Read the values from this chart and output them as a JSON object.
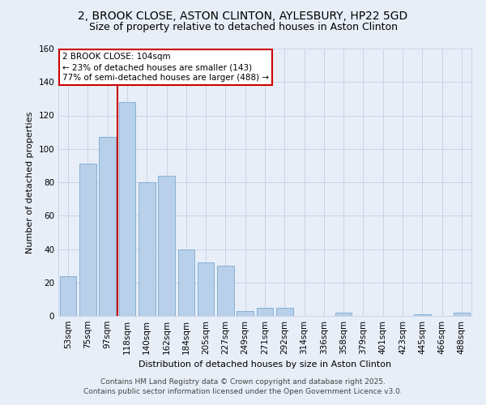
{
  "title": "2, BROOK CLOSE, ASTON CLINTON, AYLESBURY, HP22 5GD",
  "subtitle": "Size of property relative to detached houses in Aston Clinton",
  "xlabel": "Distribution of detached houses by size in Aston Clinton",
  "ylabel": "Number of detached properties",
  "categories": [
    "53sqm",
    "75sqm",
    "97sqm",
    "118sqm",
    "140sqm",
    "162sqm",
    "184sqm",
    "205sqm",
    "227sqm",
    "249sqm",
    "271sqm",
    "292sqm",
    "314sqm",
    "336sqm",
    "358sqm",
    "379sqm",
    "401sqm",
    "423sqm",
    "445sqm",
    "466sqm",
    "488sqm"
  ],
  "values": [
    24,
    91,
    107,
    128,
    80,
    84,
    40,
    32,
    30,
    3,
    5,
    5,
    0,
    0,
    2,
    0,
    0,
    0,
    1,
    0,
    2
  ],
  "bar_color": "#b8d0ea",
  "bar_edge_color": "#7aaad0",
  "grid_color": "#c8d4e8",
  "bg_color": "#e8eef8",
  "annotation_text": "2 BROOK CLOSE: 104sqm\n← 23% of detached houses are smaller (143)\n77% of semi-detached houses are larger (488) →",
  "annotation_box_color": "#ffffff",
  "annotation_box_edge": "#cc0000",
  "vline_color": "#cc0000",
  "vline_pos": 2.5,
  "ylim": [
    0,
    160
  ],
  "yticks": [
    0,
    20,
    40,
    60,
    80,
    100,
    120,
    140,
    160
  ],
  "footer_line1": "Contains HM Land Registry data © Crown copyright and database right 2025.",
  "footer_line2": "Contains public sector information licensed under the Open Government Licence v3.0.",
  "title_fontsize": 10,
  "subtitle_fontsize": 9,
  "axis_fontsize": 8,
  "tick_fontsize": 7.5,
  "annotation_fontsize": 7.5,
  "footer_fontsize": 6.5
}
